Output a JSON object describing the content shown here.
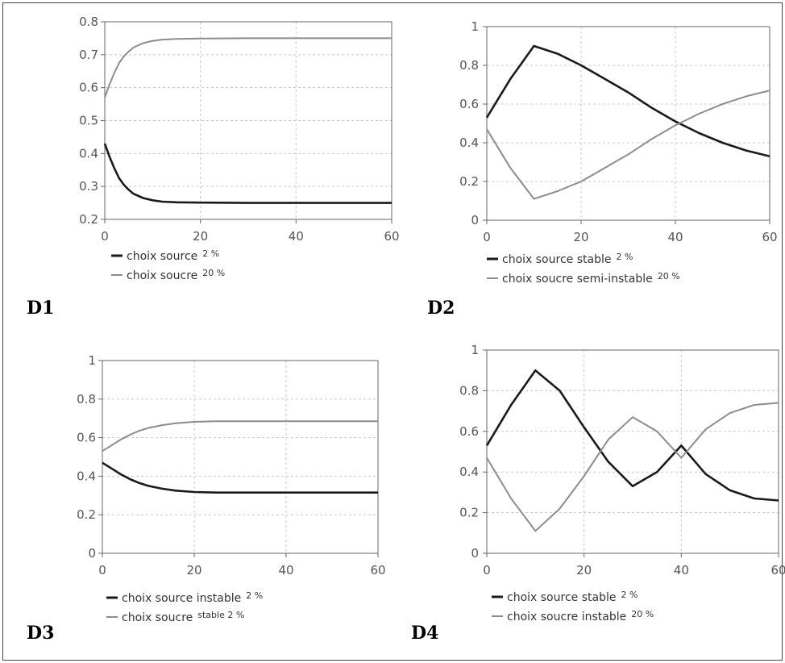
{
  "colors": {
    "dark": "#1a1a1a",
    "light": "#8c8c8c",
    "grid": "#c8c8c8",
    "axis": "#666666"
  },
  "chart_data": [
    {
      "id": "D1",
      "panel_label": "D1",
      "type": "line",
      "title": "",
      "xlabel": "",
      "ylabel": "",
      "xlim": [
        0,
        60
      ],
      "ylim": [
        0.2,
        0.8
      ],
      "xticks": [
        0,
        20,
        40,
        60
      ],
      "xtick_labels": [
        "0",
        "20",
        "40",
        "60"
      ],
      "yticks": [
        0.2,
        0.3,
        0.4,
        0.5,
        0.6,
        0.7,
        0.8
      ],
      "ytick_labels": [
        "0.2",
        "0.3",
        "0.4",
        "0.5",
        "0.6",
        "0.7",
        "0.8"
      ],
      "grid": true,
      "legend_position": "bottom",
      "series": [
        {
          "name": "choix source",
          "legend_suffix": "2 %",
          "color": "dark",
          "x": [
            0,
            1,
            2,
            3,
            4,
            5,
            6,
            8,
            10,
            12,
            15,
            20,
            30,
            40,
            60
          ],
          "y": [
            0.43,
            0.39,
            0.355,
            0.325,
            0.305,
            0.29,
            0.278,
            0.265,
            0.258,
            0.254,
            0.252,
            0.251,
            0.25,
            0.25,
            0.25
          ]
        },
        {
          "name": "choix soucre",
          "legend_suffix": "20 %",
          "color": "light",
          "x": [
            0,
            1,
            2,
            3,
            4,
            5,
            6,
            8,
            10,
            12,
            15,
            20,
            30,
            40,
            60
          ],
          "y": [
            0.57,
            0.61,
            0.645,
            0.675,
            0.695,
            0.71,
            0.722,
            0.735,
            0.742,
            0.746,
            0.748,
            0.749,
            0.75,
            0.75,
            0.75
          ]
        }
      ]
    },
    {
      "id": "D2",
      "panel_label": "D2",
      "type": "line",
      "title": "",
      "xlabel": "",
      "ylabel": "",
      "xlim": [
        0,
        60
      ],
      "ylim": [
        0,
        1
      ],
      "xticks": [
        0,
        20,
        40,
        60
      ],
      "xtick_labels": [
        "0",
        "20",
        "40",
        "60"
      ],
      "yticks": [
        0,
        0.2,
        0.4,
        0.6,
        0.8,
        1
      ],
      "ytick_labels": [
        "0",
        "0.2",
        "0.4",
        "0.6",
        "0.8",
        "1"
      ],
      "grid": true,
      "legend_position": "bottom",
      "series": [
        {
          "name": "choix source stable",
          "legend_suffix": "2 %",
          "color": "dark",
          "x": [
            0,
            5,
            10,
            15,
            20,
            25,
            30,
            35,
            40,
            45,
            50,
            55,
            60
          ],
          "y": [
            0.53,
            0.73,
            0.9,
            0.86,
            0.8,
            0.73,
            0.66,
            0.58,
            0.51,
            0.45,
            0.4,
            0.36,
            0.33
          ]
        },
        {
          "name": "choix soucre semi-instable",
          "legend_suffix": "20 %",
          "color": "light",
          "x": [
            0,
            5,
            10,
            15,
            20,
            25,
            30,
            35,
            40,
            45,
            50,
            55,
            60
          ],
          "y": [
            0.47,
            0.27,
            0.11,
            0.15,
            0.2,
            0.27,
            0.34,
            0.42,
            0.49,
            0.55,
            0.6,
            0.64,
            0.67
          ]
        }
      ]
    },
    {
      "id": "D3",
      "panel_label": "D3",
      "type": "line",
      "title": "",
      "xlabel": "",
      "ylabel": "",
      "xlim": [
        0,
        60
      ],
      "ylim": [
        0,
        1
      ],
      "xticks": [
        0,
        20,
        40,
        60
      ],
      "xtick_labels": [
        "0",
        "20",
        "40",
        "60"
      ],
      "yticks": [
        0,
        0.2,
        0.4,
        0.6,
        0.8,
        1
      ],
      "ytick_labels": [
        "0",
        "0.2",
        "0.4",
        "0.6",
        "0.8",
        "1"
      ],
      "grid": true,
      "legend_position": "bottom",
      "series": [
        {
          "name": "choix source instable",
          "legend_suffix": "2 %",
          "color": "dark",
          "x": [
            0,
            2,
            4,
            6,
            8,
            10,
            13,
            16,
            20,
            25,
            30,
            40,
            60
          ],
          "y": [
            0.47,
            0.44,
            0.41,
            0.385,
            0.365,
            0.35,
            0.335,
            0.325,
            0.318,
            0.315,
            0.315,
            0.315,
            0.315
          ]
        },
        {
          "name": "choix soucre",
          "legend_suffix": "stable   2 %",
          "color": "light",
          "x": [
            0,
            2,
            4,
            6,
            8,
            10,
            13,
            16,
            20,
            25,
            30,
            40,
            60
          ],
          "y": [
            0.53,
            0.56,
            0.59,
            0.615,
            0.635,
            0.65,
            0.665,
            0.675,
            0.682,
            0.685,
            0.685,
            0.685,
            0.685
          ]
        }
      ]
    },
    {
      "id": "D4",
      "panel_label": "D4",
      "type": "line",
      "title": "",
      "xlabel": "",
      "ylabel": "",
      "xlim": [
        0,
        60
      ],
      "ylim": [
        0,
        1
      ],
      "xticks": [
        0,
        20,
        40,
        60
      ],
      "xtick_labels": [
        "0",
        "20",
        "40",
        "60"
      ],
      "yticks": [
        0,
        0.2,
        0.4,
        0.6,
        0.8,
        1
      ],
      "ytick_labels": [
        "0",
        "0.2",
        "0.4",
        "0.6",
        "0.8",
        "1"
      ],
      "grid": true,
      "legend_position": "bottom",
      "series": [
        {
          "name": "choix source stable",
          "legend_suffix": "2 %",
          "color": "dark",
          "x": [
            0,
            5,
            10,
            15,
            20,
            25,
            30,
            35,
            40,
            45,
            50,
            55,
            60
          ],
          "y": [
            0.53,
            0.73,
            0.9,
            0.8,
            0.62,
            0.45,
            0.33,
            0.4,
            0.53,
            0.39,
            0.31,
            0.27,
            0.26
          ]
        },
        {
          "name": "choix soucre instable",
          "legend_suffix": "20 %",
          "color": "light",
          "x": [
            0,
            5,
            10,
            15,
            20,
            25,
            30,
            35,
            40,
            45,
            50,
            55,
            60
          ],
          "y": [
            0.47,
            0.27,
            0.11,
            0.22,
            0.38,
            0.56,
            0.67,
            0.6,
            0.47,
            0.61,
            0.69,
            0.73,
            0.74
          ]
        }
      ]
    }
  ]
}
